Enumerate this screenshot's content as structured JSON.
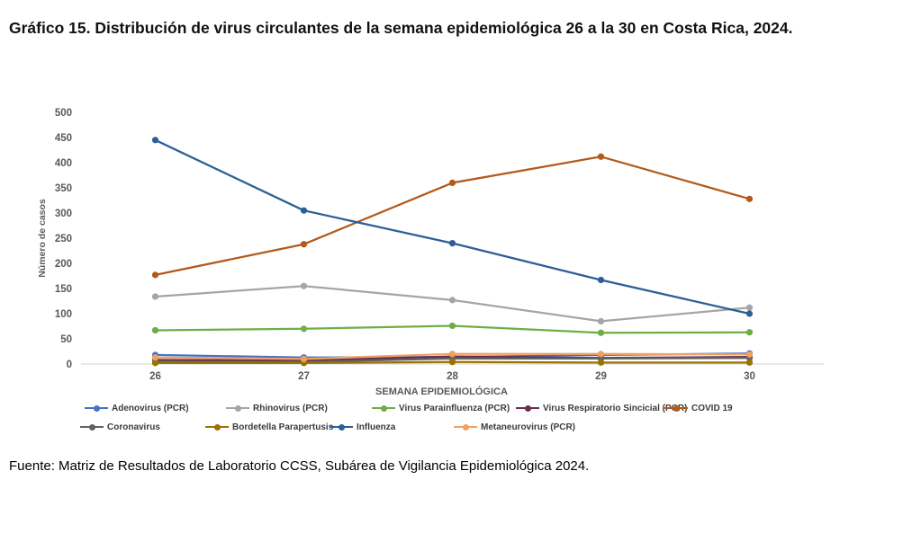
{
  "title": "Gráfico 15. Distribución de virus circulantes de la semana epidemiológica 26 a la 30 en Costa Rica, 2024.",
  "source": "Fuente: Matriz de Resultados de Laboratorio CCSS, Subárea de Vigilancia Epidemiológica 2024.",
  "chart_data": {
    "type": "line",
    "title": "Gráfico 15. Distribución de virus circulantes de la semana epidemiológica 26 a la 30 en Costa Rica, 2024.",
    "xlabel": "SEMANA EPIDEMIOLÓGICA",
    "ylabel": "Número de casos",
    "categories": [
      "26",
      "27",
      "28",
      "29",
      "30"
    ],
    "ylim": [
      0,
      500
    ],
    "ytick_step": 50,
    "grid": false,
    "legend_position": "bottom",
    "series": [
      {
        "name": "Adenovirus (PCR)",
        "color": "#4472C4",
        "values": [
          18,
          13,
          14,
          18,
          21
        ]
      },
      {
        "name": "Rhinovirus (PCR)",
        "color": "#A5A5A5",
        "values": [
          134,
          155,
          127,
          85,
          112
        ]
      },
      {
        "name": "Virus Parainfluenza (PCR)",
        "color": "#70AD47",
        "values": [
          67,
          70,
          76,
          62,
          63
        ]
      },
      {
        "name": "Virus Respiratorio Sincicial (PCR)",
        "color": "#6B2C4F",
        "values": [
          8,
          7,
          15,
          12,
          14
        ]
      },
      {
        "name": "COVID 19",
        "color": "#B3591C",
        "values": [
          177,
          238,
          360,
          412,
          328
        ]
      },
      {
        "name": "Coronavirus",
        "color": "#636363",
        "values": [
          5,
          4,
          11,
          11,
          12
        ]
      },
      {
        "name": "Bordetella Parapertusis",
        "color": "#997300",
        "values": [
          2,
          2,
          4,
          3,
          3
        ]
      },
      {
        "name": "Influenza",
        "color": "#2D5F96",
        "values": [
          445,
          305,
          240,
          167,
          100
        ]
      },
      {
        "name": "Metaneurovirus (PCR)",
        "color": "#F0A163",
        "values": [
          13,
          10,
          20,
          20,
          19
        ]
      }
    ],
    "legend_rows": [
      [
        0,
        1,
        2,
        3,
        4
      ],
      [
        5,
        6,
        7,
        8
      ]
    ],
    "axis_color": "#d9d9d9",
    "tick_label_color": "#595959"
  }
}
